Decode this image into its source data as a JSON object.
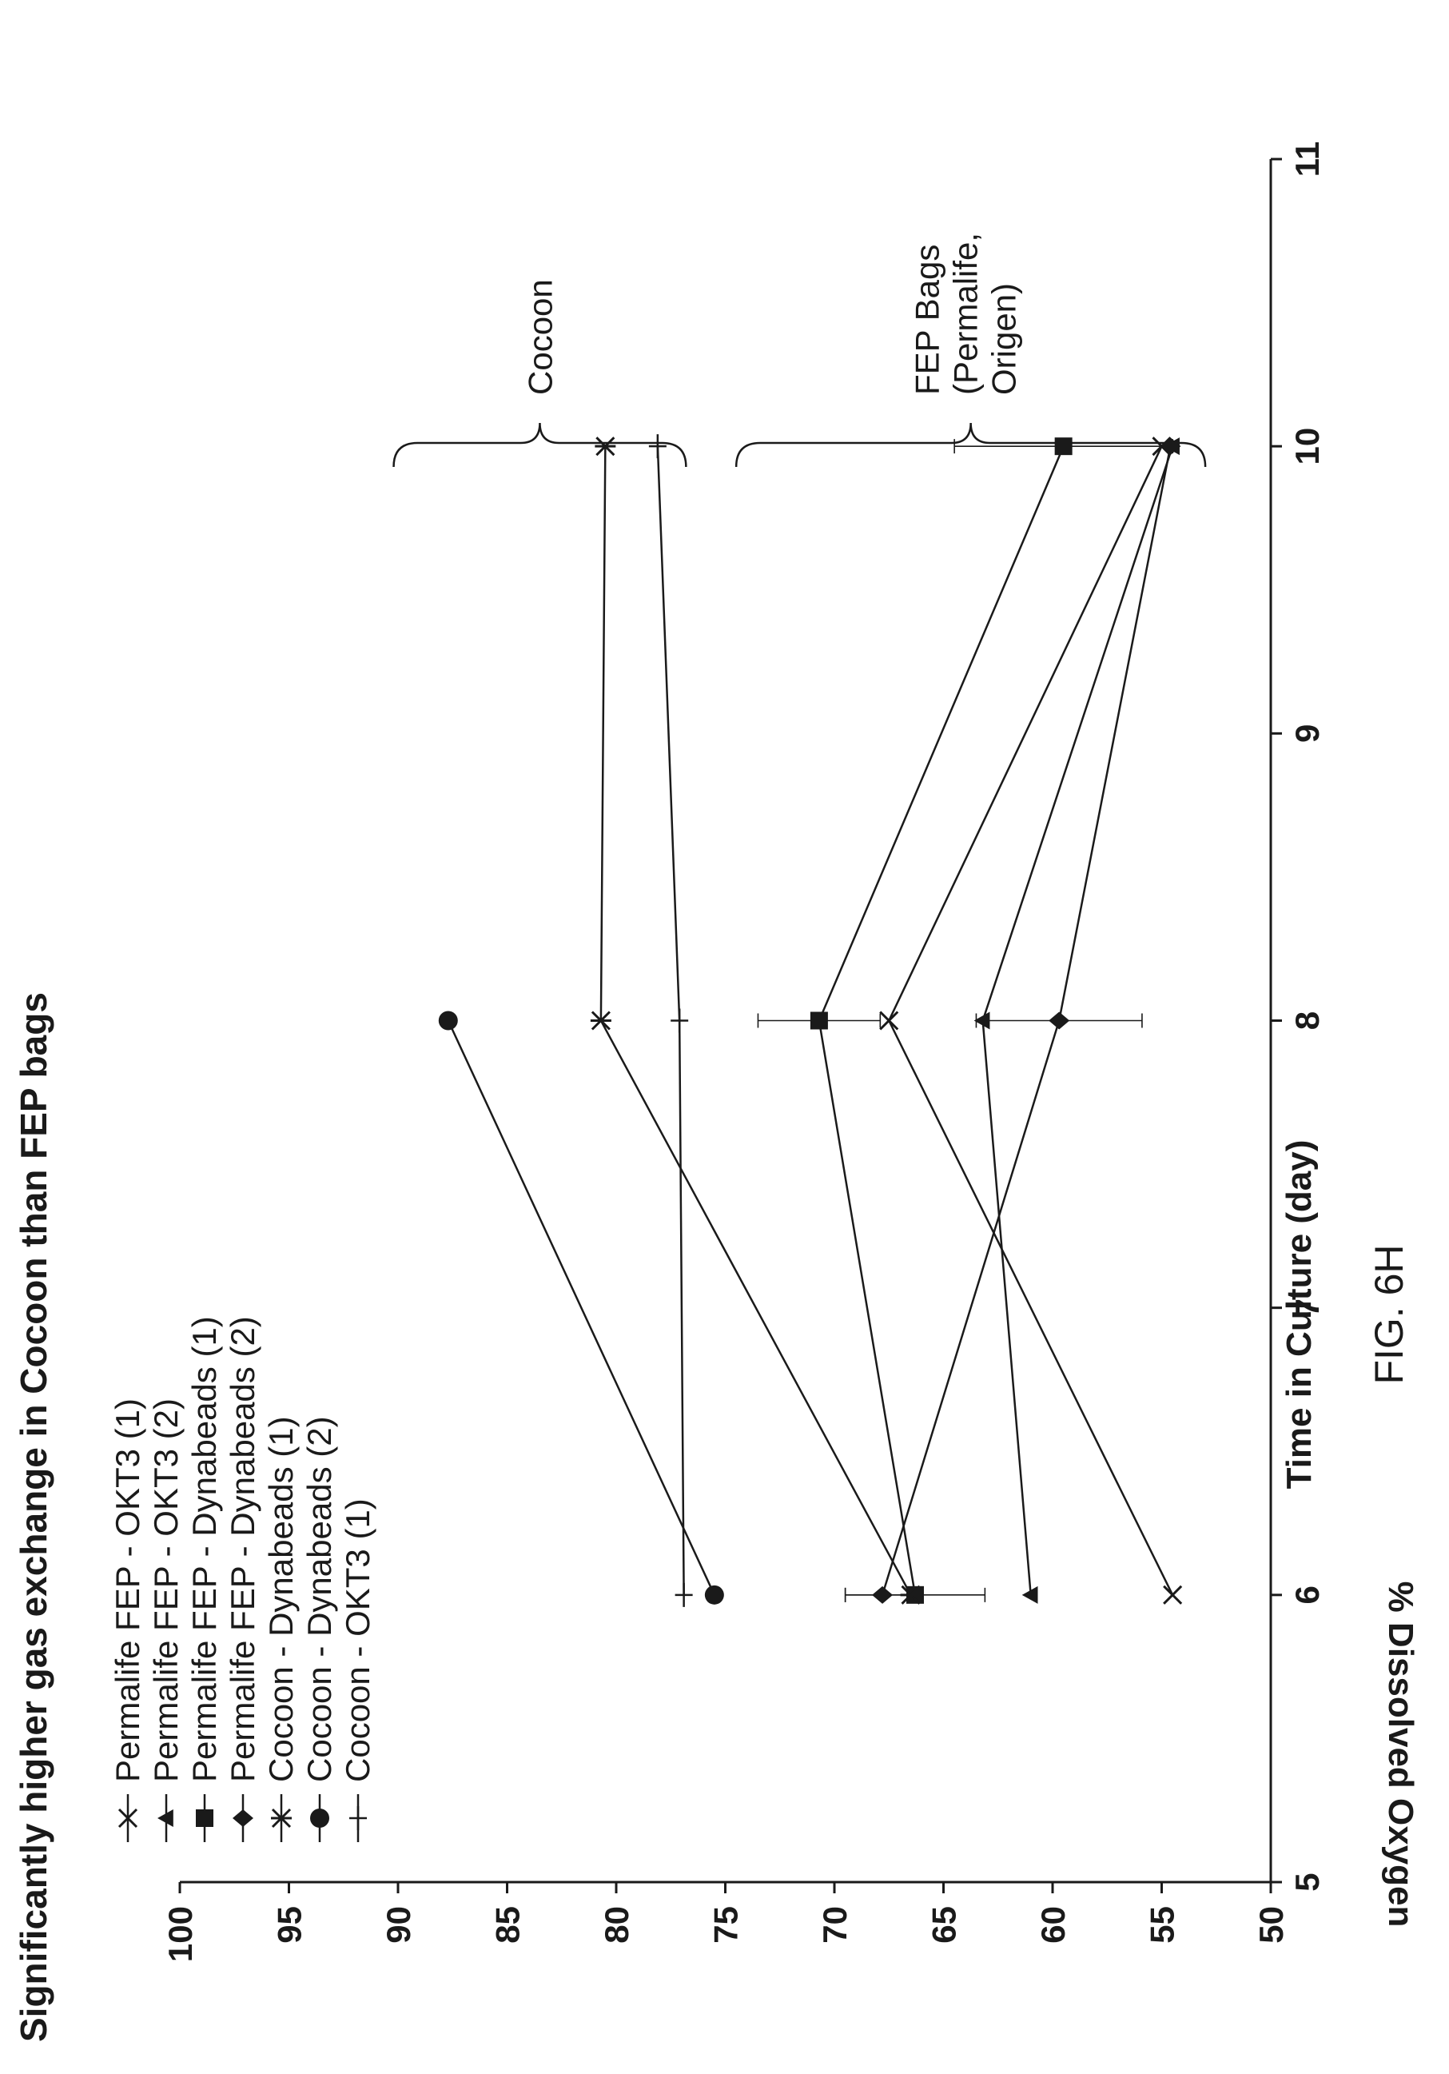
{
  "chart_data": {
    "type": "line",
    "title": "Significantly higher gas exchange in Cocoon than FEP bags",
    "xlabel": "Time in Culture (day)",
    "ylabel": "% Dissolved Oxygen",
    "xlim": [
      5,
      11
    ],
    "ylim": [
      50,
      100
    ],
    "xticks": [
      "5",
      "6",
      "7",
      "8",
      "9",
      "10",
      "11"
    ],
    "yticks": [
      "50",
      "55",
      "60",
      "65",
      "70",
      "75",
      "80",
      "85",
      "90",
      "95",
      "100"
    ],
    "legend_position": "top-left",
    "grid": false,
    "series": [
      {
        "name": "Permalife FEP - OKT3 (1)",
        "marker": "x",
        "x": [
          6,
          8,
          10
        ],
        "y": [
          54.5,
          67.5,
          55
        ]
      },
      {
        "name": "Permalife FEP - OKT3 (2)",
        "marker": "triangle",
        "x": [
          6,
          8,
          10
        ],
        "y": [
          61,
          63.2,
          54.5
        ]
      },
      {
        "name": "Permalife FEP - Dynabeads (1)",
        "marker": "square",
        "x": [
          6,
          8,
          10
        ],
        "y": [
          66.3,
          70.7,
          59.5
        ],
        "yerr": [
          3.2,
          2.8,
          5.0
        ]
      },
      {
        "name": "Permalife FEP - Dynabeads (2)",
        "marker": "diamond",
        "x": [
          6,
          8,
          10
        ],
        "y": [
          67.8,
          59.7,
          54.6
        ],
        "yerr": [
          1.7,
          3.8,
          0
        ]
      },
      {
        "name": "Cocoon - Dynabeads (1)",
        "marker": "asterisk",
        "x": [
          6,
          8,
          10
        ],
        "y": [
          66.5,
          80.7,
          80.5
        ]
      },
      {
        "name": "Cocoon - Dynabeads (2)",
        "marker": "circle",
        "x": [
          6,
          8
        ],
        "y": [
          75.5,
          87.7
        ]
      },
      {
        "name": "Cocoon - OKT3 (1)",
        "marker": "plus",
        "x": [
          6,
          8,
          10
        ],
        "y": [
          76.9,
          77.1,
          78.1
        ]
      }
    ],
    "annotations": [
      {
        "text": "Cocoon"
      },
      {
        "text_lines": [
          "FEP Bags",
          "(Permalife,",
          "Origen)"
        ]
      }
    ]
  },
  "figure_label": "FIG. 6H",
  "style": {
    "line_color": "#1a1a1a",
    "background": "#ffffff"
  }
}
